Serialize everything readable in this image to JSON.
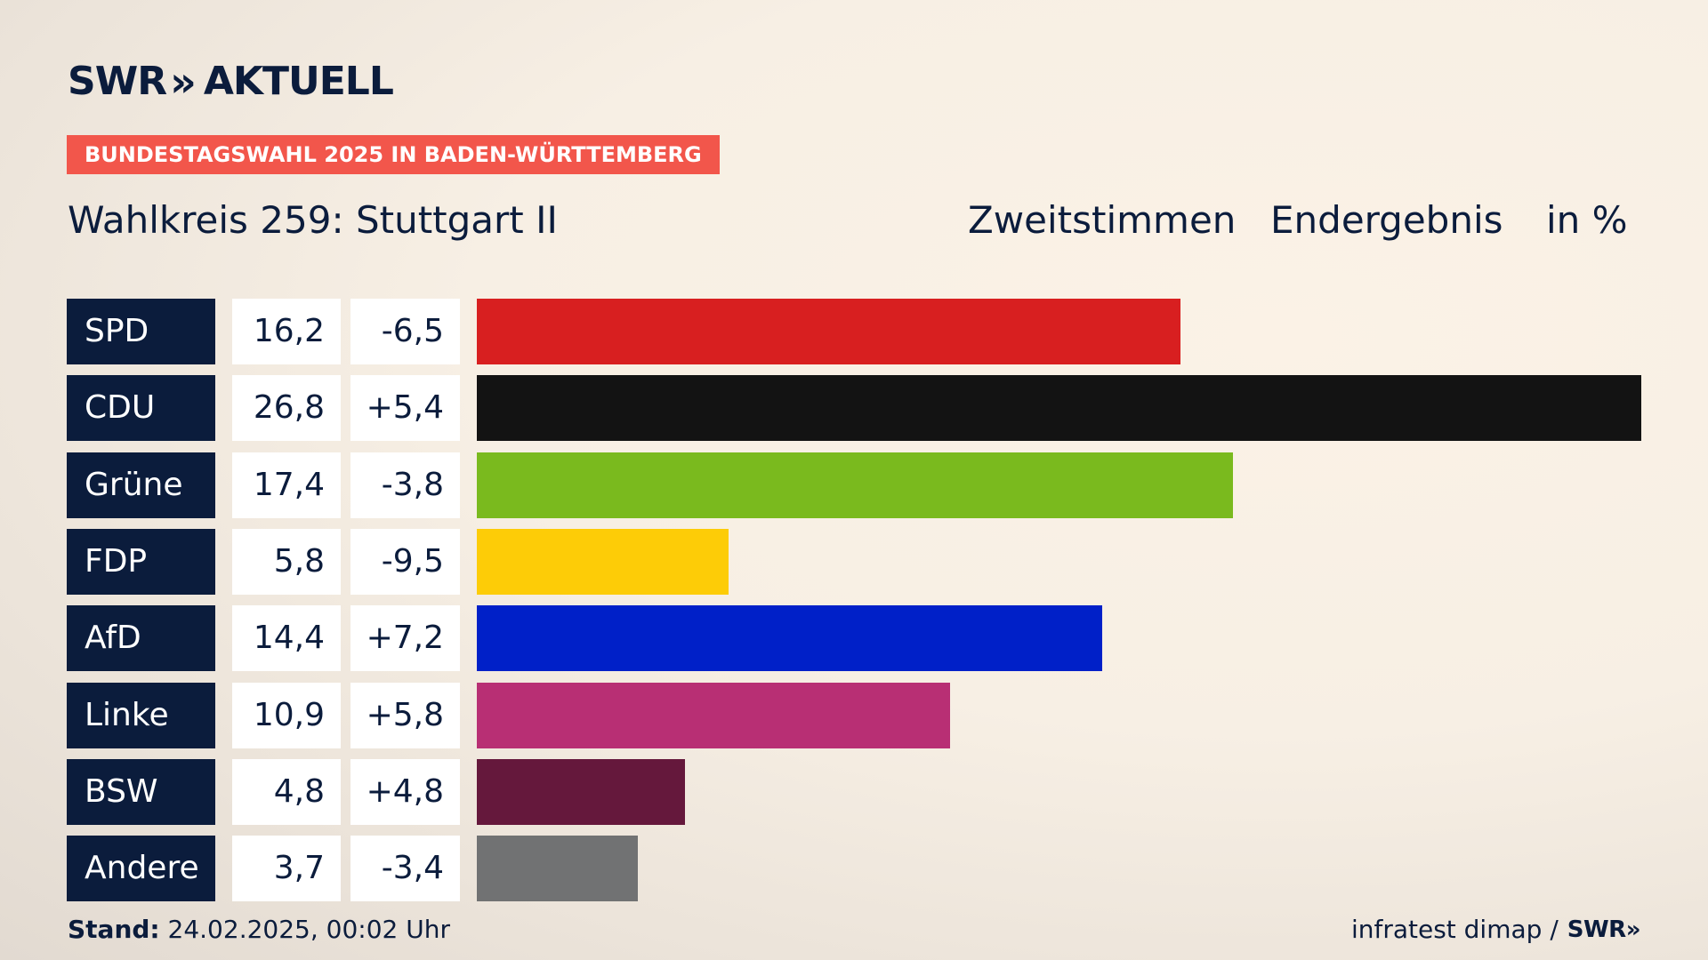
{
  "brand": {
    "logo_left": "SWR",
    "logo_arrows": "»",
    "logo_right": "AKTUELL"
  },
  "badge": "BUNDESTAGSWAHL 2025 IN BADEN-WÜRTTEMBERG",
  "subtitle": "Wahlkreis 259: Stuttgart II",
  "header_right": {
    "vote_type": "Zweitstimmen",
    "status": "Endergebnis",
    "unit": "in %"
  },
  "chart_data": {
    "type": "bar",
    "orientation": "horizontal",
    "categories": [
      "SPD",
      "CDU",
      "Grüne",
      "FDP",
      "AfD",
      "Linke",
      "BSW",
      "Andere"
    ],
    "values": [
      16.2,
      26.8,
      17.4,
      5.8,
      14.4,
      10.9,
      4.8,
      3.7
    ],
    "value_labels": [
      "16,2",
      "26,8",
      "17,4",
      "5,8",
      "14,4",
      "10,9",
      "4,8",
      "3,7"
    ],
    "changes": [
      -6.5,
      5.4,
      -3.8,
      -9.5,
      7.2,
      5.8,
      4.8,
      -3.4
    ],
    "change_labels": [
      "-6,5",
      "+5,4",
      "-3,8",
      "-9,5",
      "+7,2",
      "+5,8",
      "+4,8",
      "-3,4"
    ],
    "colors": [
      "#d81f20",
      "#131313",
      "#7aba1e",
      "#fdcc07",
      "#0020c8",
      "#b82f74",
      "#65183c",
      "#717273"
    ],
    "xlim": [
      0,
      26.8
    ],
    "grid": false,
    "legend": "none"
  },
  "footer": {
    "stand_label": "Stand:",
    "stand_value": "24.02.2025, 00:02 Uhr",
    "source": "infratest dimap /",
    "source_logo": "SWR»"
  }
}
